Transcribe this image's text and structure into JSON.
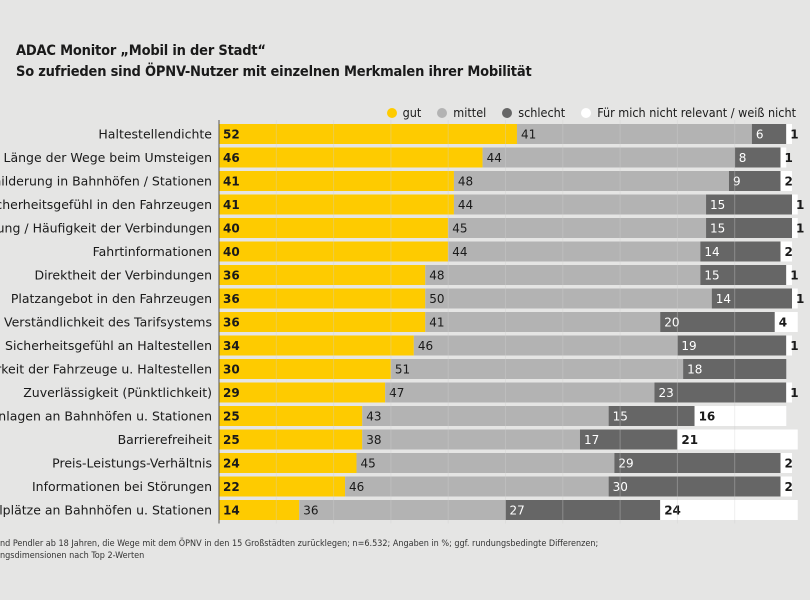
{
  "header": {
    "title": "ADAC Monitor „Mobil in der Stadt“",
    "subtitle": "So zufrieden sind ÖPNV-Nutzer mit einzelnen Merkmalen ihrer Mobilität"
  },
  "footer": {
    "line1": "nd Pendler ab 18 Jahren, die Wege mit dem ÖPNV in den 15 Großstädten zurücklegen; n=6.532; Angaben in %; ggf. rundungsbedingte Differenzen;",
    "line2": "ngsdimensionen nach Top 2-Werten"
  },
  "colors": {
    "gut": "#fecb00",
    "mittel": "#b3b3b3",
    "schlecht": "#666666",
    "nicht_relevant": "#ffffff",
    "background": "#e5e5e4"
  },
  "chart_data": {
    "type": "bar",
    "orientation": "horizontal",
    "stacked": true,
    "xlim": [
      0,
      100
    ],
    "grid": true,
    "legend_position": "top-right",
    "categories": [
      "Haltestellendichte",
      "Länge der Wege beim Umsteigen",
      "eschilderung in Bahnhöfen / Stationen",
      "Sicherheitsgefühl in den Fahrzeugen",
      "Taktung / Häufigkeit der Verbindungen",
      "Fahrtinformationen",
      "Direktheit der Verbindungen",
      "Platzangebot in den Fahrzeugen",
      "Verständlichkeit des Tarifsystems",
      "Sicherheitsgefühl an Haltestellen",
      "auberkeit der Fahrzeuge u. Haltestellen",
      "Zuverlässigkeit (Pünktlichkeit)",
      "stellanlagen an Bahnhöfen u. Stationen",
      "Barrierefreiheit",
      "Preis-Leistungs-Verhältnis",
      "Informationen bei Störungen",
      "-Stellplätze an Bahnhöfen u. Stationen"
    ],
    "series": [
      {
        "name": "gut",
        "values": [
          52,
          46,
          41,
          41,
          40,
          40,
          36,
          36,
          36,
          34,
          30,
          29,
          25,
          25,
          24,
          22,
          14
        ]
      },
      {
        "name": "mittel",
        "values": [
          41,
          44,
          48,
          44,
          45,
          44,
          48,
          50,
          41,
          46,
          51,
          47,
          43,
          38,
          45,
          46,
          36
        ]
      },
      {
        "name": "schlecht",
        "values": [
          6,
          8,
          9,
          15,
          15,
          14,
          15,
          14,
          20,
          19,
          18,
          23,
          15,
          17,
          29,
          30,
          27
        ]
      },
      {
        "name": "Für mich nicht relevant / weiß nicht",
        "values": [
          1,
          1,
          2,
          1,
          1,
          2,
          1,
          1,
          4,
          1,
          null,
          1,
          16,
          21,
          2,
          2,
          24
        ]
      }
    ]
  }
}
